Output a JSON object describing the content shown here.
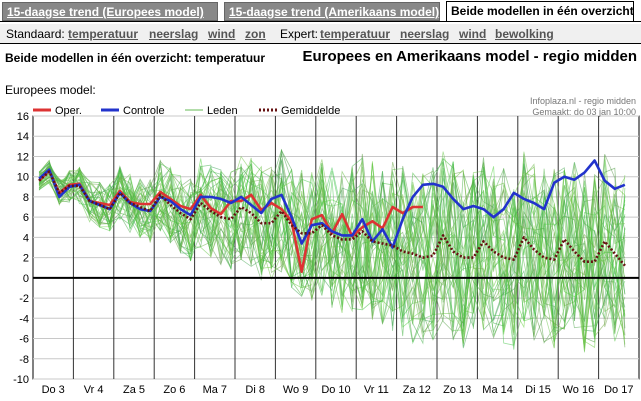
{
  "tabs": [
    {
      "label": "15-daagse trend (Europees model)",
      "active": false
    },
    {
      "label": "15-daagse trend (Amerikaans model)",
      "active": false
    },
    {
      "label": "Beide modellen in één overzicht",
      "active": true
    }
  ],
  "nav": {
    "standaard_label": "Standaard:",
    "standaard_links": [
      "temperatuur",
      "neerslag",
      "wind",
      "zon"
    ],
    "expert_label": "Expert:",
    "expert_links": [
      "temperatuur",
      "neerslag",
      "wind",
      "bewolking"
    ]
  },
  "subtitle": "Beide modellen in één overzicht: temperatuur",
  "title": "Europees en Amerikaans model - regio midden",
  "model_label": "Europees model:",
  "source": "Infoplaza.nl - regio midden",
  "made": "Gemaakt: do 03 jan 10:00",
  "colors": {
    "oper": "#dd3333",
    "controle": "#2233cc",
    "leden": "#66bb55",
    "gemiddelde": "#661111",
    "tab_inactive": "#888888"
  },
  "chart_data": {
    "type": "line",
    "title": "",
    "xlabel": "",
    "ylabel": "",
    "ylim": [
      -10,
      16
    ],
    "yticks": [
      -10,
      -8,
      -6,
      -4,
      -2,
      0,
      2,
      4,
      6,
      8,
      10,
      12,
      14,
      16
    ],
    "days": [
      "Do 3",
      "Vr 4",
      "Za 5",
      "Zo 6",
      "Ma 7",
      "Di 8",
      "Wo 9",
      "Do 10",
      "Vr 11",
      "Za 12",
      "Zo 13",
      "Ma 14",
      "Di 15",
      "Wo 16",
      "Do 17"
    ],
    "legend": [
      "Oper.",
      "Controle",
      "Leden",
      "Gemiddelde"
    ],
    "legend_position": "top-left",
    "grid": true,
    "series": [
      {
        "name": "Oper.",
        "x": [
          0,
          0.25,
          0.5,
          0.75,
          1,
          1.25,
          1.5,
          1.75,
          2,
          2.25,
          2.5,
          2.75,
          3,
          3.25,
          3.5,
          3.75,
          4,
          4.25,
          4.5,
          4.75,
          5,
          5.25,
          5.5,
          5.75,
          6,
          6.25,
          6.5,
          6.75,
          7,
          7.25,
          7.5,
          7.75,
          8,
          8.25,
          8.5,
          8.75,
          9,
          9.25,
          9.5
        ],
        "y": [
          9.6,
          10.6,
          8.4,
          9.2,
          9.3,
          7.6,
          7.4,
          7.2,
          8.6,
          7.5,
          7.3,
          7.3,
          8.5,
          7.8,
          7.1,
          6.8,
          8.2,
          6.9,
          6.3,
          7.6,
          7.6,
          8.2,
          6.7,
          7.4,
          6.8,
          5.6,
          0.6,
          5.8,
          6.2,
          4.4,
          6.3,
          4.1,
          5.0,
          5.6,
          4.9,
          7.0,
          6.4,
          7.0,
          7.0
        ]
      },
      {
        "name": "Controle",
        "x": [
          0,
          0.25,
          0.5,
          0.75,
          1,
          1.25,
          1.5,
          1.75,
          2,
          2.25,
          2.5,
          2.75,
          3,
          3.25,
          3.5,
          3.75,
          4,
          4.25,
          4.5,
          4.75,
          5,
          5.25,
          5.5,
          5.75,
          6,
          6.25,
          6.5,
          6.75,
          7,
          7.25,
          7.5,
          7.75,
          8,
          8.25,
          8.5,
          8.75,
          9,
          9.25,
          9.5,
          9.75,
          10,
          10.25,
          10.5,
          10.75,
          11,
          11.25,
          11.5,
          11.75,
          12,
          12.25,
          12.5,
          12.75,
          13,
          13.25,
          13.5,
          13.75,
          14,
          14.25,
          14.5
        ],
        "y": [
          9.8,
          10.7,
          8.0,
          9.0,
          9.2,
          7.6,
          7.2,
          6.8,
          8.4,
          7.4,
          6.8,
          6.6,
          8.0,
          7.6,
          6.8,
          6.2,
          8.0,
          8.0,
          7.8,
          7.4,
          8.0,
          7.2,
          6.4,
          7.8,
          8.2,
          6.0,
          3.4,
          5.2,
          5.4,
          4.6,
          4.2,
          4.2,
          5.8,
          3.6,
          4.8,
          3.0,
          5.8,
          8.0,
          9.2,
          9.3,
          9.0,
          7.8,
          6.8,
          7.1,
          6.8,
          6.0,
          6.8,
          8.4,
          7.8,
          7.4,
          6.8,
          9.4,
          10.0,
          9.7,
          10.4,
          11.6,
          9.6,
          8.8,
          9.2
        ]
      },
      {
        "name": "Gemiddelde",
        "x": [
          0,
          0.25,
          0.5,
          0.75,
          1,
          1.25,
          1.5,
          1.75,
          2,
          2.25,
          2.5,
          2.75,
          3,
          3.25,
          3.5,
          3.75,
          4,
          4.25,
          4.5,
          4.75,
          5,
          5.25,
          5.5,
          5.75,
          6,
          6.25,
          6.5,
          6.75,
          7,
          7.25,
          7.5,
          7.75,
          8,
          8.25,
          8.5,
          8.75,
          9,
          9.25,
          9.5,
          9.75,
          10,
          10.25,
          10.5,
          10.75,
          11,
          11.25,
          11.5,
          11.75,
          12,
          12.25,
          12.5,
          12.75,
          13,
          13.25,
          13.5,
          13.75,
          14,
          14.25,
          14.5
        ],
        "y": [
          9.6,
          10.5,
          8.4,
          9.1,
          9.1,
          7.6,
          7.2,
          6.8,
          8.4,
          7.4,
          7.0,
          6.6,
          8.2,
          7.2,
          6.4,
          5.8,
          7.4,
          6.6,
          6.0,
          5.8,
          7.0,
          6.4,
          5.4,
          5.4,
          6.6,
          5.2,
          4.4,
          4.4,
          5.2,
          4.2,
          3.8,
          3.8,
          4.6,
          3.6,
          3.4,
          3.2,
          2.6,
          2.4,
          2.0,
          2.2,
          4.2,
          2.6,
          2.0,
          2.0,
          3.6,
          2.6,
          2.0,
          1.8,
          4.0,
          2.8,
          2.0,
          1.8,
          3.8,
          2.6,
          1.6,
          1.6,
          3.6,
          2.4,
          1.2
        ]
      }
    ],
    "members_note": "Leden: ensemble spread (thin green lines)"
  }
}
